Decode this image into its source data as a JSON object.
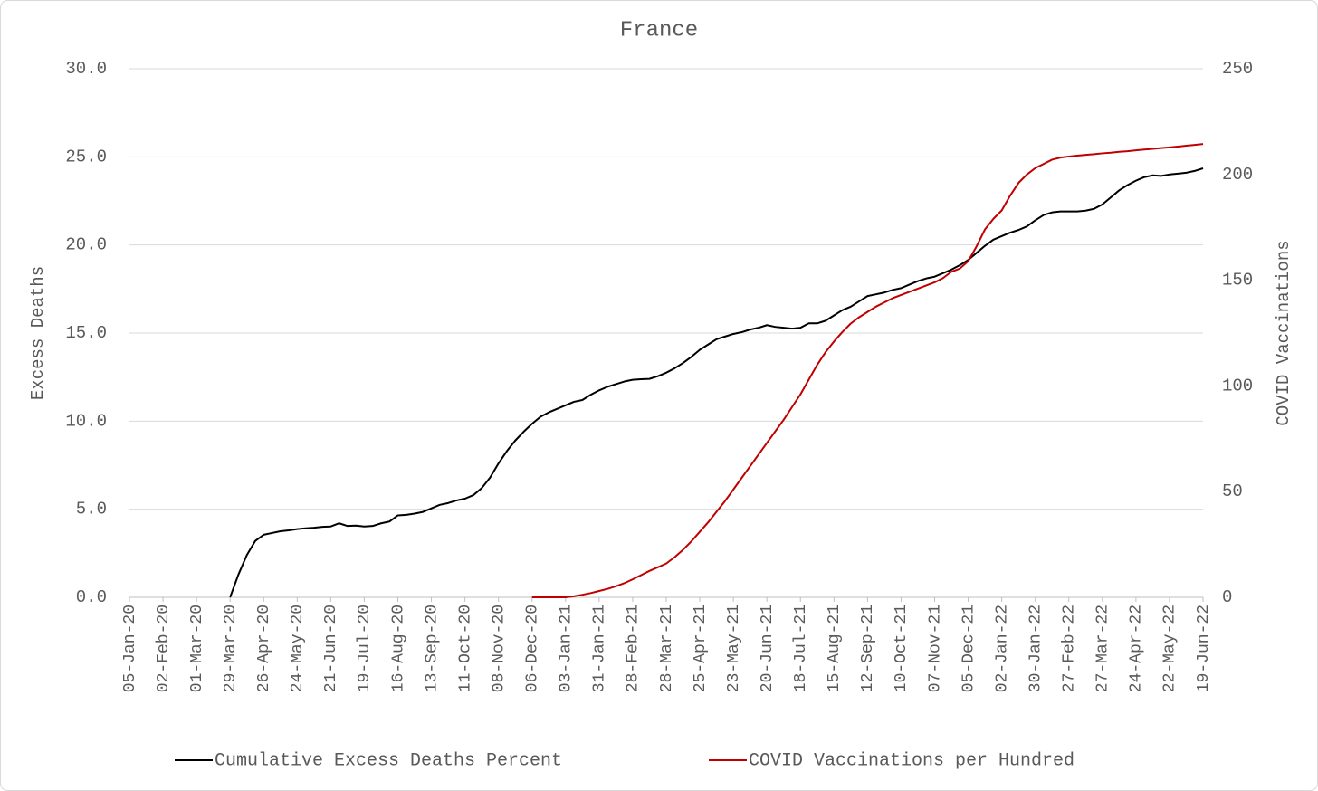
{
  "chart_data": {
    "type": "line",
    "title": "France",
    "y_label": "Excess Deaths",
    "y2_label": "COVID Vaccinations",
    "categories": [
      "05-Jan-20",
      null,
      null,
      null,
      "02-Feb-20",
      null,
      null,
      null,
      "01-Mar-20",
      null,
      null,
      null,
      "29-Mar-20",
      null,
      null,
      null,
      "26-Apr-20",
      null,
      null,
      null,
      "24-May-20",
      null,
      null,
      null,
      "21-Jun-20",
      null,
      null,
      null,
      "19-Jul-20",
      null,
      null,
      null,
      "16-Aug-20",
      null,
      null,
      null,
      "13-Sep-20",
      null,
      null,
      null,
      "11-Oct-20",
      null,
      null,
      null,
      "08-Nov-20",
      null,
      null,
      null,
      "06-Dec-20",
      null,
      null,
      null,
      "03-Jan-21",
      null,
      null,
      null,
      "31-Jan-21",
      null,
      null,
      null,
      "28-Feb-21",
      null,
      null,
      null,
      "28-Mar-21",
      null,
      null,
      null,
      "25-Apr-21",
      null,
      null,
      null,
      "23-May-21",
      null,
      null,
      null,
      "20-Jun-21",
      null,
      null,
      null,
      "18-Jul-21",
      null,
      null,
      null,
      "15-Aug-21",
      null,
      null,
      null,
      "12-Sep-21",
      null,
      null,
      null,
      "10-Oct-21",
      null,
      null,
      null,
      "07-Nov-21",
      null,
      null,
      null,
      "05-Dec-21",
      null,
      null,
      null,
      "02-Jan-22",
      null,
      null,
      null,
      "30-Jan-22",
      null,
      null,
      null,
      "27-Feb-22",
      null,
      null,
      null,
      "27-Mar-22",
      null,
      null,
      null,
      "24-Apr-22",
      null,
      null,
      null,
      "22-May-22",
      null,
      null,
      null,
      "19-Jun-22"
    ],
    "series": [
      {
        "name": "Cumulative Excess Deaths Percent",
        "color": "#000000",
        "axis": "y",
        "values": [
          null,
          null,
          null,
          null,
          null,
          null,
          null,
          null,
          null,
          null,
          null,
          null,
          0,
          1.3,
          2.4,
          3.2,
          3.55,
          3.65,
          3.75,
          3.8,
          3.87,
          3.92,
          3.95,
          4.0,
          4.02,
          4.2,
          4.05,
          4.07,
          4.02,
          4.05,
          4.2,
          4.3,
          4.65,
          4.68,
          4.75,
          4.85,
          5.05,
          5.25,
          5.35,
          5.5,
          5.6,
          5.8,
          6.2,
          6.8,
          7.6,
          8.3,
          8.9,
          9.4,
          9.85,
          10.25,
          10.5,
          10.7,
          10.9,
          11.1,
          11.2,
          11.5,
          11.75,
          11.95,
          12.1,
          12.25,
          12.35,
          12.38,
          12.4,
          12.55,
          12.75,
          13.0,
          13.3,
          13.65,
          14.05,
          14.35,
          14.65,
          14.8,
          14.95,
          15.05,
          15.2,
          15.3,
          15.45,
          15.35,
          15.3,
          15.25,
          15.3,
          15.55,
          15.55,
          15.7,
          16.0,
          16.3,
          16.5,
          16.8,
          17.1,
          17.2,
          17.3,
          17.45,
          17.55,
          17.75,
          17.95,
          18.1,
          18.2,
          18.4,
          18.6,
          18.85,
          19.15,
          19.55,
          19.95,
          20.3,
          20.5,
          20.7,
          20.85,
          21.05,
          21.4,
          21.7,
          21.85,
          21.9,
          21.9,
          21.9,
          21.95,
          22.05,
          22.3,
          22.7,
          23.1,
          23.4,
          23.65,
          23.85,
          23.95,
          23.92,
          24.0,
          24.05,
          24.1,
          24.2,
          24.35
        ]
      },
      {
        "name": "COVID Vaccinations per Hundred",
        "color": "#c00000",
        "axis": "y2",
        "values": [
          null,
          null,
          null,
          null,
          null,
          null,
          null,
          null,
          null,
          null,
          null,
          null,
          null,
          null,
          null,
          null,
          null,
          null,
          null,
          null,
          null,
          null,
          null,
          null,
          null,
          null,
          null,
          null,
          null,
          null,
          null,
          null,
          null,
          null,
          null,
          null,
          null,
          null,
          null,
          null,
          null,
          null,
          null,
          null,
          null,
          null,
          null,
          null,
          0,
          0,
          0,
          0,
          0,
          0.5,
          1.2,
          2,
          3,
          4,
          5.2,
          6.7,
          8.5,
          10.5,
          12.5,
          14.2,
          16,
          19,
          22.5,
          26.5,
          31,
          35.5,
          40.5,
          45.5,
          51,
          56.5,
          62,
          67.5,
          73,
          78.5,
          84,
          90,
          96,
          103,
          110,
          116,
          121,
          125.5,
          129.5,
          132.5,
          135,
          137.5,
          139.5,
          141.5,
          143,
          144.5,
          146,
          147.5,
          149,
          151,
          154,
          155.5,
          159,
          166,
          174,
          179,
          183,
          190,
          196,
          200,
          203,
          205,
          207,
          208,
          208.5,
          208.9,
          209.3,
          209.6,
          210,
          210.3,
          210.7,
          211,
          211.4,
          211.8,
          212.1,
          212.5,
          212.8,
          213.2,
          213.6,
          214,
          214.4
        ]
      }
    ],
    "ylim": [
      0,
      30
    ],
    "yticks": [
      {
        "value": 0,
        "label": "0.0"
      },
      {
        "value": 5,
        "label": "5.0"
      },
      {
        "value": 10,
        "label": "10.0"
      },
      {
        "value": 15,
        "label": "15.0"
      },
      {
        "value": 20,
        "label": "20.0"
      },
      {
        "value": 25,
        "label": "25.0"
      },
      {
        "value": 30,
        "label": "30.0"
      }
    ],
    "y2lim": [
      0,
      250
    ],
    "y2ticks": [
      0,
      50,
      100,
      150,
      200,
      250
    ],
    "grid": true,
    "legend": "bottom"
  }
}
